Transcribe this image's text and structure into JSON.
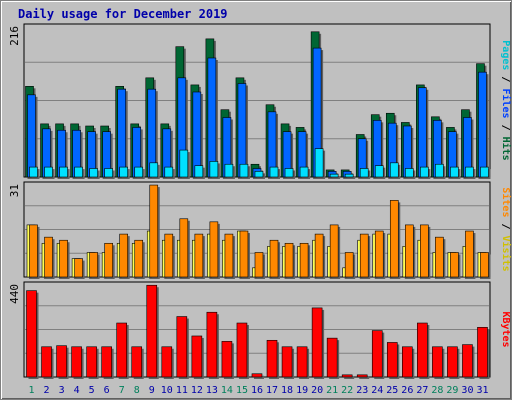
{
  "title": "Daily usage for December 2019",
  "colors": {
    "background": "#c0c0c0",
    "pages": "#0040ff",
    "files": "#0066ff",
    "hits": "#006633",
    "cyan": "#00e0ff",
    "visits": "#ffff55",
    "sites": "#ff8800",
    "kbytes": "#ff0000",
    "weekend": "#00805c",
    "weekday": "#0000aa"
  },
  "chart_data": [
    {
      "type": "bar",
      "panel": "top",
      "ymax_label": "216",
      "ylim": [
        0,
        216
      ],
      "y_axis_legend": [
        {
          "text": "Pages",
          "color": "#00c0d0"
        },
        {
          "text": " / ",
          "color": "#000000"
        },
        {
          "text": "Files",
          "color": "#0040ff"
        },
        {
          "text": " / ",
          "color": "#000000"
        },
        {
          "text": "Hits",
          "color": "#006633"
        }
      ],
      "categories": [
        "1",
        "2",
        "3",
        "4",
        "5",
        "6",
        "7",
        "8",
        "9",
        "10",
        "11",
        "12",
        "13",
        "14",
        "15",
        "16",
        "17",
        "18",
        "19",
        "20",
        "21",
        "22",
        "23",
        "24",
        "25",
        "26",
        "27",
        "28",
        "29",
        "30",
        "31"
      ],
      "series": [
        {
          "name": "Hits",
          "values": [
            128,
            75,
            75,
            75,
            72,
            72,
            128,
            75,
            140,
            75,
            184,
            130,
            195,
            95,
            140,
            18,
            102,
            75,
            70,
            205,
            10,
            10,
            60,
            88,
            90,
            77,
            130,
            85,
            70,
            95,
            160
          ]
        },
        {
          "name": "Files",
          "values": [
            116,
            68,
            66,
            66,
            64,
            64,
            124,
            70,
            124,
            68,
            140,
            120,
            168,
            84,
            132,
            12,
            92,
            64,
            64,
            182,
            8,
            8,
            54,
            80,
            76,
            72,
            126,
            80,
            64,
            84,
            148
          ]
        },
        {
          "name": "Pages",
          "values": [
            14,
            14,
            14,
            14,
            12,
            12,
            14,
            14,
            20,
            14,
            38,
            16,
            22,
            18,
            18,
            8,
            14,
            12,
            14,
            40,
            4,
            4,
            12,
            16,
            20,
            12,
            14,
            18,
            14,
            14,
            14
          ]
        }
      ]
    },
    {
      "type": "bar",
      "panel": "middle",
      "ymax_label": "31",
      "ylim": [
        0,
        31
      ],
      "y_axis_legend": [
        {
          "text": "Sites",
          "color": "#ff8800"
        },
        {
          "text": " / ",
          "color": "#000000"
        },
        {
          "text": "Visits",
          "color": "#d0c000"
        }
      ],
      "categories": [
        "1",
        "2",
        "3",
        "4",
        "5",
        "6",
        "7",
        "8",
        "9",
        "10",
        "11",
        "12",
        "13",
        "14",
        "15",
        "16",
        "17",
        "18",
        "19",
        "20",
        "21",
        "22",
        "23",
        "24",
        "25",
        "26",
        "27",
        "28",
        "29",
        "30",
        "31"
      ],
      "series": [
        {
          "name": "Visits",
          "values": [
            17,
            11,
            11,
            6,
            8,
            8,
            11,
            11,
            15,
            12,
            12,
            12,
            14,
            12,
            15,
            3,
            10,
            10,
            10,
            12,
            10,
            3,
            12,
            14,
            14,
            10,
            12,
            8,
            8,
            10,
            8
          ]
        },
        {
          "name": "Sites",
          "values": [
            17,
            13,
            12,
            6,
            8,
            11,
            14,
            12,
            30,
            14,
            19,
            14,
            18,
            14,
            15,
            8,
            12,
            11,
            11,
            14,
            17,
            8,
            14,
            15,
            25,
            17,
            17,
            13,
            8,
            15,
            8
          ]
        }
      ]
    },
    {
      "type": "bar",
      "panel": "bottom",
      "ymax_label": "440",
      "ylim": [
        0,
        440
      ],
      "y_axis_legend": [
        {
          "text": "KBytes",
          "color": "#ff0000"
        }
      ],
      "categories": [
        "1",
        "2",
        "3",
        "4",
        "5",
        "6",
        "7",
        "8",
        "9",
        "10",
        "11",
        "12",
        "13",
        "14",
        "15",
        "16",
        "17",
        "18",
        "19",
        "20",
        "21",
        "22",
        "23",
        "24",
        "25",
        "26",
        "27",
        "28",
        "29",
        "30",
        "31"
      ],
      "series": [
        {
          "name": "KBytes",
          "values": [
            400,
            140,
            145,
            140,
            140,
            140,
            250,
            140,
            425,
            140,
            280,
            190,
            300,
            165,
            250,
            15,
            170,
            140,
            140,
            320,
            180,
            10,
            10,
            215,
            160,
            140,
            250,
            140,
            140,
            150,
            230
          ]
        }
      ]
    }
  ],
  "x_axis": {
    "labels": [
      "1",
      "2",
      "3",
      "4",
      "5",
      "6",
      "7",
      "8",
      "9",
      "10",
      "11",
      "12",
      "13",
      "14",
      "15",
      "16",
      "17",
      "18",
      "19",
      "20",
      "21",
      "22",
      "23",
      "24",
      "25",
      "26",
      "27",
      "28",
      "29",
      "30",
      "31"
    ],
    "weekend_days": [
      1,
      7,
      8,
      14,
      15,
      21,
      22,
      28,
      29
    ]
  }
}
